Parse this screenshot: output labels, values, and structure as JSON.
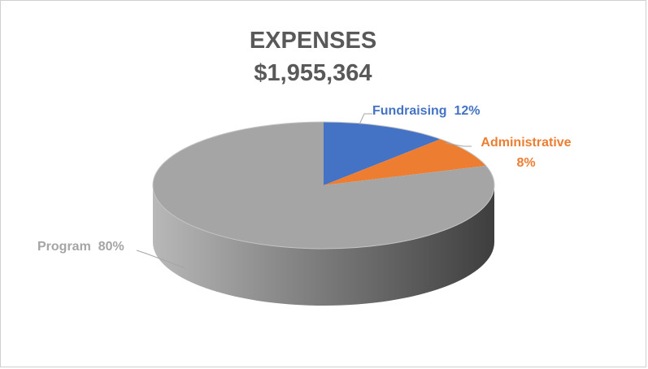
{
  "chart_data": {
    "type": "pie",
    "title": "EXPENSES",
    "subtitle": "$1,955,364",
    "slices": [
      {
        "name": "Fundraising",
        "value": 12,
        "label": "Fundraising  12%",
        "color": "#4472c4"
      },
      {
        "name": "Administrative",
        "value": 8,
        "label_line1": "Administrative",
        "label_line2": "8%",
        "color": "#ed7d31"
      },
      {
        "name": "Program",
        "value": 80,
        "label": "Program  80%",
        "color": "#a5a5a5"
      }
    ],
    "style": "3d"
  }
}
